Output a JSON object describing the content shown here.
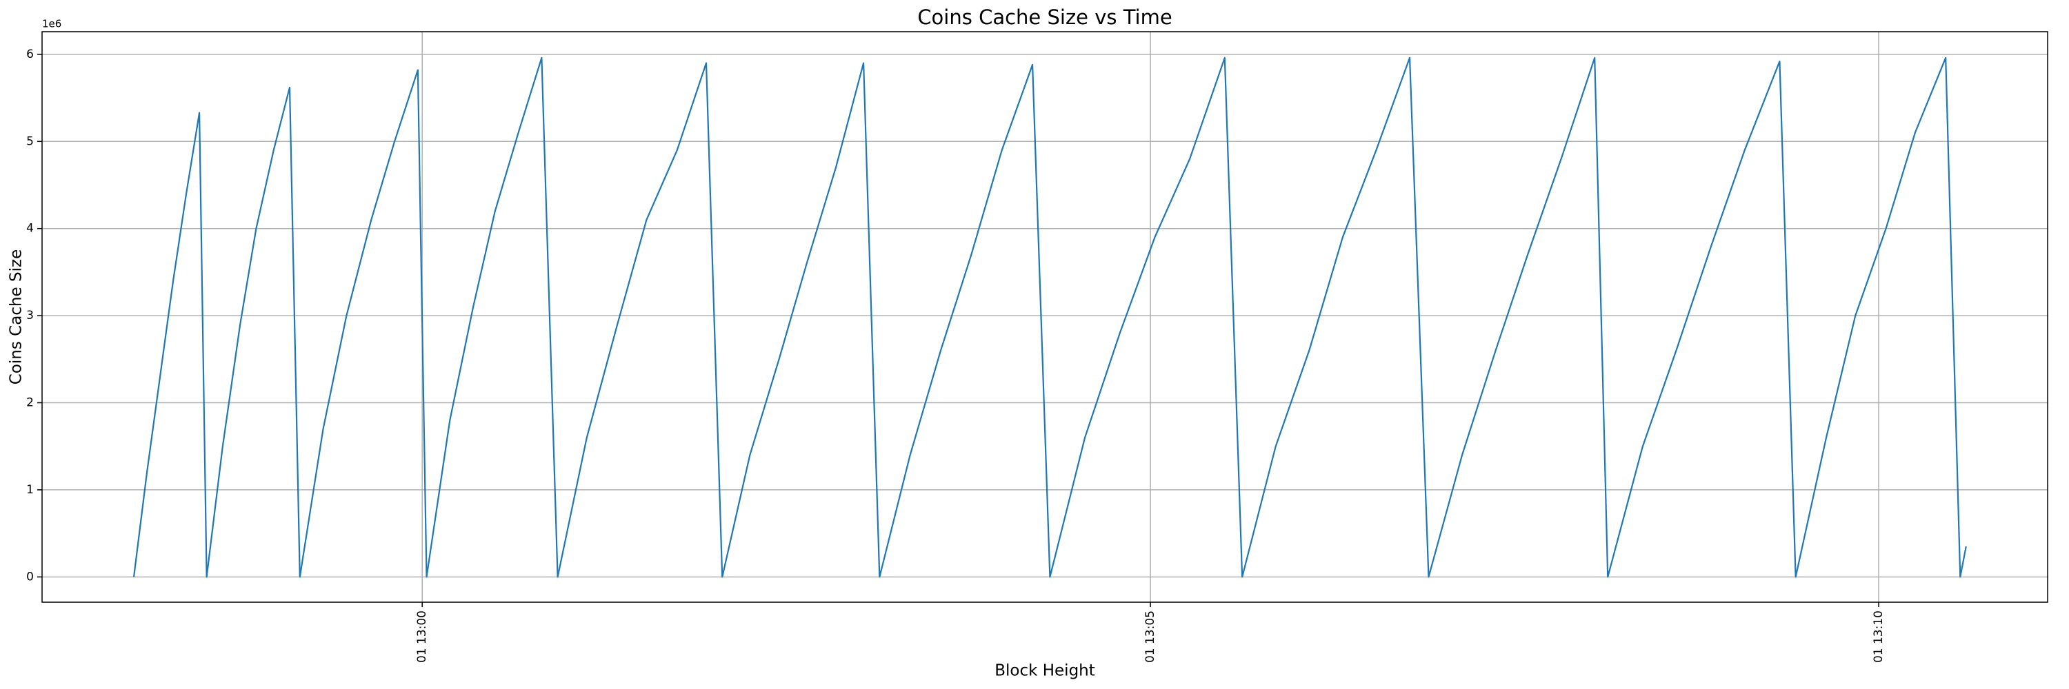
{
  "chart_data": {
    "type": "line",
    "title": "Coins Cache Size vs Time",
    "xlabel": "Block Height",
    "ylabel": "Coins Cache Size",
    "y_offset_label": "1e6",
    "x": [
      778.02,
      778.11,
      778.2,
      778.29,
      778.38,
      778.47,
      778.52,
      778.63,
      778.75,
      778.86,
      778.98,
      779.09,
      779.16,
      779.32,
      779.48,
      779.65,
      779.81,
      779.97,
      780.03,
      780.19,
      780.35,
      780.5,
      780.66,
      780.82,
      780.93,
      781.13,
      781.34,
      781.54,
      781.75,
      781.95,
      782.06,
      782.25,
      782.45,
      782.64,
      782.84,
      783.03,
      783.14,
      783.35,
      783.56,
      783.77,
      783.98,
      784.19,
      784.31,
      784.55,
      784.79,
      785.03,
      785.27,
      785.51,
      785.63,
      785.86,
      786.09,
      786.32,
      786.55,
      786.78,
      786.91,
      787.14,
      787.37,
      787.59,
      787.82,
      788.05,
      788.14,
      788.38,
      788.61,
      788.85,
      789.08,
      789.32,
      789.43,
      789.64,
      789.84,
      790.05,
      790.25,
      790.46,
      790.56,
      790.6
    ],
    "series": [
      {
        "name": "Coins Cache Size",
        "color": "#1f77b4",
        "values": [
          0,
          1.2,
          2.3,
          3.4,
          4.4,
          5.33,
          0,
          1.5,
          2.9,
          4.0,
          4.9,
          5.62,
          0,
          1.7,
          3.0,
          4.1,
          5.0,
          5.82,
          0,
          1.8,
          3.1,
          4.2,
          5.1,
          5.96,
          0,
          1.6,
          2.9,
          4.1,
          4.9,
          5.9,
          0,
          1.4,
          2.5,
          3.6,
          4.7,
          5.9,
          0,
          1.4,
          2.6,
          3.7,
          4.9,
          5.88,
          0,
          1.6,
          2.8,
          3.9,
          4.8,
          5.96,
          0,
          1.5,
          2.6,
          3.9,
          4.9,
          5.96,
          0,
          1.4,
          2.6,
          3.7,
          4.8,
          5.96,
          0,
          1.5,
          2.6,
          3.8,
          4.9,
          5.92,
          0,
          1.6,
          3.0,
          4.0,
          5.1,
          5.96,
          0,
          0.35
        ]
      }
    ],
    "xlim": [
      777.39,
      791.16
    ],
    "xticks": [
      {
        "value": 780,
        "label": "01 13:00"
      },
      {
        "value": 785,
        "label": "01 13:05"
      },
      {
        "value": 790,
        "label": "01 13:10"
      }
    ],
    "ylim": [
      -0.29,
      6.26
    ],
    "yticks": [
      0,
      1,
      2,
      3,
      4,
      5,
      6
    ],
    "grid": true
  }
}
